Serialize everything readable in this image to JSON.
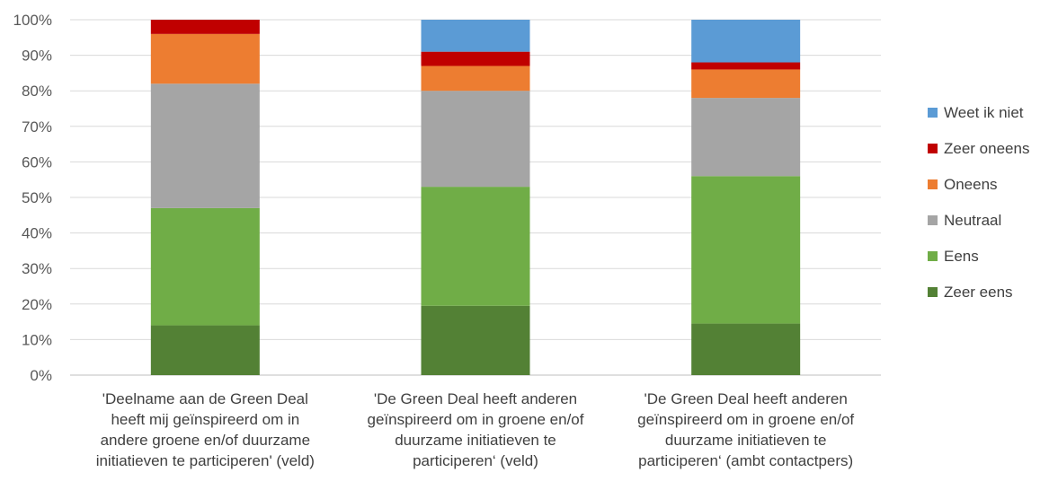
{
  "chart_data": {
    "type": "bar",
    "stacked": true,
    "percent": true,
    "categories": [
      [
        "'Deelname aan de Green Deal",
        "heeft mij geïnspireerd om in",
        "andere groene en/of duurzame",
        "initiatieven te participeren' (veld)"
      ],
      [
        "'De Green Deal heeft anderen",
        "geïnspireerd om in groene en/of",
        "duurzame initiatieven  te",
        "participeren‘ (veld)"
      ],
      [
        "'De Green Deal heeft anderen",
        "geïnspireerd om in groene en/of",
        "duurzame initiatieven  te",
        "participeren‘ (ambt contactpers)"
      ]
    ],
    "series": [
      {
        "name": "Zeer eens",
        "color": "#538135",
        "values": [
          14,
          19.5,
          14.5
        ]
      },
      {
        "name": "Eens",
        "color": "#70AD47",
        "values": [
          33,
          33.5,
          41.5
        ]
      },
      {
        "name": "Neutraal",
        "color": "#A5A5A5",
        "values": [
          35,
          27,
          22
        ]
      },
      {
        "name": "Oneens",
        "color": "#ED7D31",
        "values": [
          14,
          7,
          8
        ]
      },
      {
        "name": "Zeer oneens",
        "color": "#C00000",
        "values": [
          4,
          4,
          2
        ]
      },
      {
        "name": "Weet ik niet",
        "color": "#5B9BD5",
        "values": [
          0,
          9,
          12
        ]
      }
    ],
    "ylim": [
      0,
      100
    ],
    "yticks": [
      "0%",
      "10%",
      "20%",
      "30%",
      "40%",
      "50%",
      "60%",
      "70%",
      "80%",
      "90%",
      "100%"
    ],
    "grid": true,
    "legend_position": "right",
    "title": "",
    "xlabel": "",
    "ylabel": ""
  }
}
